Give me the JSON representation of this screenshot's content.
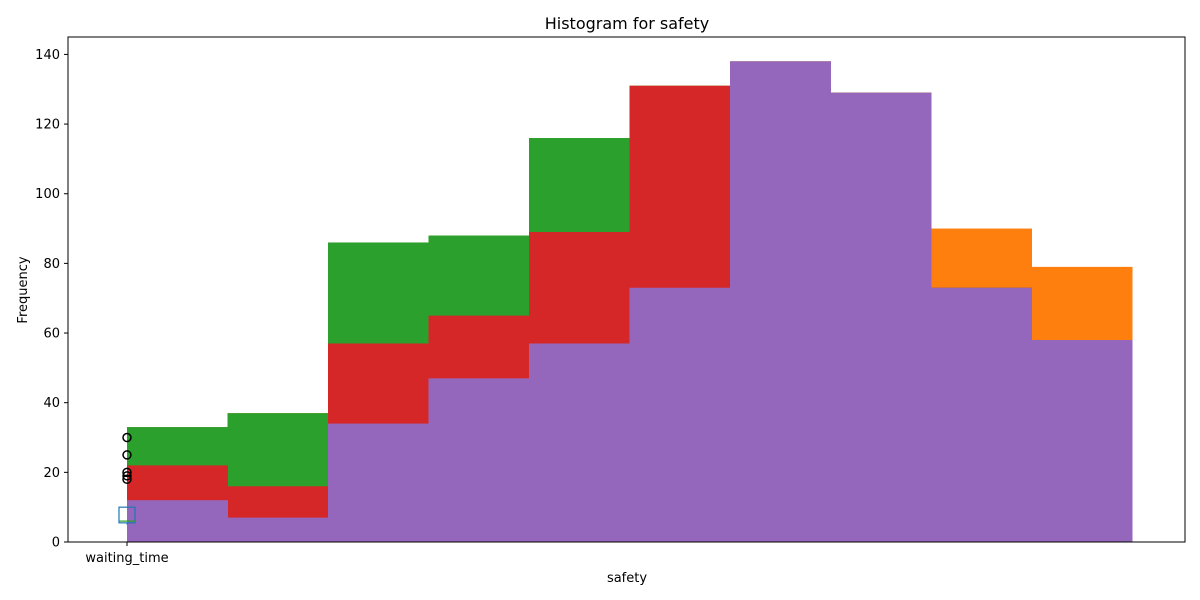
{
  "chart_data": {
    "type": "bar",
    "title": "Histogram for safety",
    "xlabel": "safety",
    "ylabel": "Frequency",
    "ylim": [
      0,
      145
    ],
    "y_ticks": [
      0,
      20,
      40,
      60,
      80,
      100,
      120,
      140
    ],
    "x_tick_labels": [
      "waiting_time"
    ],
    "grid": false,
    "legend": "none",
    "series": [
      {
        "color": "#ff7f0e",
        "values": [
          33,
          37,
          86,
          88,
          116,
          131,
          138,
          129,
          90,
          79
        ]
      },
      {
        "color": "#2ca02c",
        "values": [
          33,
          37,
          86,
          88,
          116,
          131,
          138,
          129,
          73,
          58
        ]
      },
      {
        "color": "#d62728",
        "values": [
          22,
          16,
          57,
          65,
          89,
          131,
          138,
          129,
          73,
          58
        ]
      },
      {
        "color": "#9467bd",
        "values": [
          12,
          7,
          34,
          47,
          57,
          73,
          138,
          129,
          73,
          58
        ]
      }
    ],
    "boxplot": {
      "label": "waiting_time",
      "color": "#1f77b4",
      "q1": 5.5,
      "median": 6,
      "q3": 10,
      "whisker_low": 5,
      "whisker_high": 10,
      "outliers": [
        18,
        19,
        20,
        25,
        30
      ]
    }
  }
}
